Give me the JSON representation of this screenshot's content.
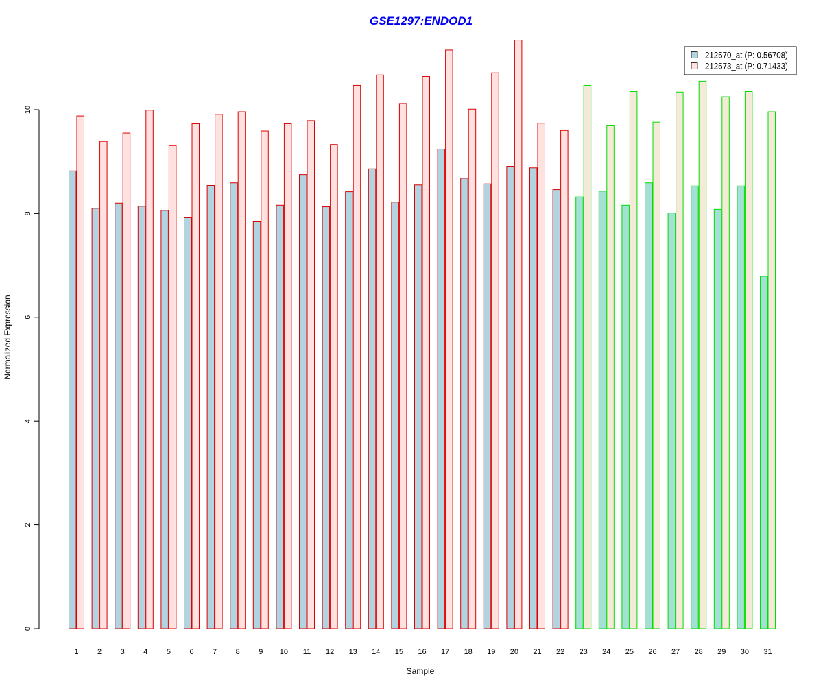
{
  "chart_data": {
    "type": "bar",
    "title": "GSE1297:ENDOD1",
    "xlabel": "Sample",
    "ylabel": "Normalized Expression",
    "ylim": [
      0,
      11.4
    ],
    "y_ticks": [
      0,
      2,
      4,
      6,
      8,
      10
    ],
    "grid": false,
    "legend_position": "top-right",
    "categories": [
      "1",
      "2",
      "3",
      "4",
      "5",
      "6",
      "7",
      "8",
      "9",
      "10",
      "11",
      "12",
      "13",
      "14",
      "15",
      "16",
      "17",
      "18",
      "19",
      "20",
      "21",
      "22",
      "23",
      "24",
      "25",
      "26",
      "27",
      "28",
      "29",
      "30",
      "31"
    ],
    "groups": [
      {
        "from": 1,
        "to": 22,
        "border_color": "#dd0000"
      },
      {
        "from": 23,
        "to": 31,
        "border_color": "#00dd00"
      }
    ],
    "series": [
      {
        "name": "212570_at (P: 0.56708)",
        "fill_colors": [
          "#b2d3e0",
          "#a5e0d6"
        ],
        "values": [
          8.82,
          8.1,
          8.2,
          8.14,
          8.06,
          7.92,
          8.54,
          8.59,
          7.84,
          8.16,
          8.75,
          8.13,
          8.42,
          8.86,
          8.22,
          8.55,
          9.24,
          8.68,
          8.57,
          8.91,
          8.88,
          8.46,
          8.32,
          8.43,
          8.16,
          8.59,
          8.01,
          8.53,
          8.08,
          8.53,
          6.79
        ]
      },
      {
        "name": "212573_at (P: 0.71433)",
        "fill_colors": [
          "#ffe2e0",
          "#f5ead8"
        ],
        "values": [
          9.88,
          9.39,
          9.55,
          9.99,
          9.31,
          9.73,
          9.91,
          9.96,
          9.59,
          9.73,
          9.79,
          9.33,
          10.47,
          10.67,
          10.12,
          10.64,
          11.15,
          10.01,
          10.71,
          11.34,
          9.74,
          9.6,
          10.47,
          9.69,
          10.35,
          9.76,
          10.34,
          10.55,
          10.25,
          10.35,
          9.96
        ]
      }
    ]
  }
}
